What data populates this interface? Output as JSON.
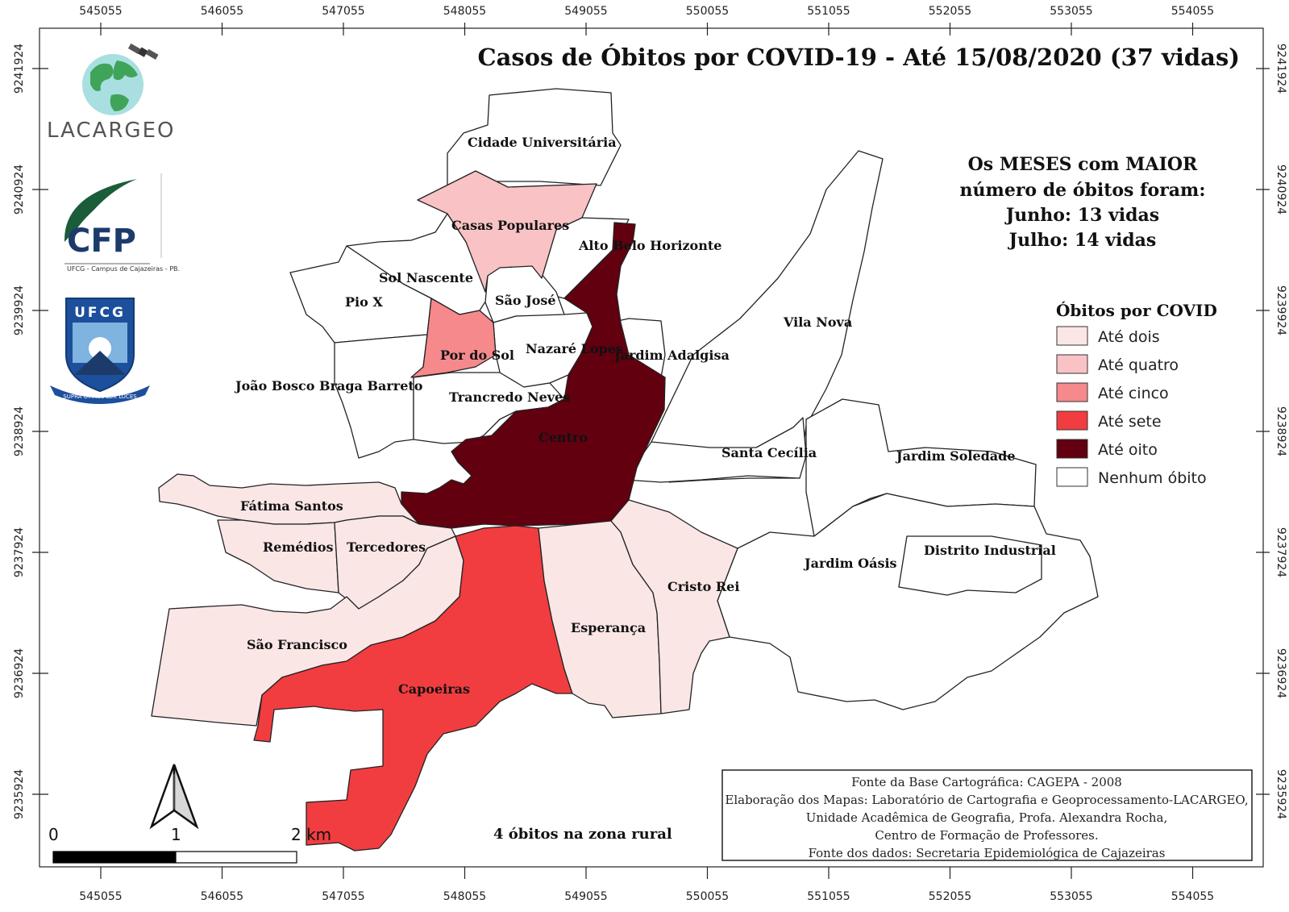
{
  "map": {
    "title": "Casos de Óbitos por COVID-19 - Até 15/08/2020 (37 vidas)",
    "x_ticks": [
      "545055",
      "546055",
      "547055",
      "548055",
      "549055",
      "550055",
      "551055",
      "552055",
      "553055",
      "554055"
    ],
    "y_ticks": [
      "9241924",
      "9240924",
      "9239924",
      "9238924",
      "9237924",
      "9236924",
      "9235924"
    ],
    "months_note": [
      "Os MESES com MAIOR",
      "número de óbitos foram:",
      "Junho: 13 vidas",
      "Julho: 14 vidas"
    ],
    "rural_note": "4 óbitos na zona rural",
    "scale": {
      "labels": [
        "0",
        "1",
        "2 km"
      ]
    },
    "legend": {
      "title": "Óbitos por COVID",
      "items": [
        {
          "label": "Até dois",
          "color": "#fbe6e6"
        },
        {
          "label": "Até quatro",
          "color": "#f9c2c4"
        },
        {
          "label": "Até cinco",
          "color": "#f5898c"
        },
        {
          "label": "Até sete",
          "color": "#f13d40"
        },
        {
          "label": "Até oito",
          "color": "#620010"
        },
        {
          "label": "Nenhum óbito",
          "color": "#ffffff"
        }
      ]
    },
    "credits": [
      "Fonte da Base Cartográfica: CAGEPA - 2008",
      "Elaboração dos Mapas: Laboratório de Cartografia e Geoprocessamento-LACARGEO,",
      "Unidade Acadêmica de Geografia, Profa. Alexandra Rocha,",
      "Centro de Formação de Professores.",
      "Fonte dos dados: Secretaria Epidemiológica de Cajazeiras"
    ],
    "logos": {
      "lacargeo": "LACARGEO",
      "cfp": "CFP",
      "cfp_sub": "UFCG - Campus de Cajazeiras - PB.",
      "ufcg": "UFCG",
      "ufcg_motto": "SUPRA OMNES LUX LUCES"
    },
    "neighborhoods": [
      {
        "name": "Cidade Universitária",
        "class": "Nenhum óbito"
      },
      {
        "name": "Casas Populares",
        "class": "Até quatro"
      },
      {
        "name": "Alto Belo Horizonte",
        "class": "Nenhum óbito"
      },
      {
        "name": "Sol Nascente",
        "class": "Nenhum óbito"
      },
      {
        "name": "Pio X",
        "class": "Nenhum óbito"
      },
      {
        "name": "São José",
        "class": "Nenhum óbito"
      },
      {
        "name": "Por do Sol",
        "class": "Até cinco"
      },
      {
        "name": "Nazaré Lopes",
        "class": "Nenhum óbito"
      },
      {
        "name": "Jardim Adalgisa",
        "class": "Nenhum óbito"
      },
      {
        "name": "Vila Nova",
        "class": "Nenhum óbito"
      },
      {
        "name": "João Bosco Braga Barreto",
        "class": "Nenhum óbito"
      },
      {
        "name": "Trancredo Neves",
        "class": "Nenhum óbito"
      },
      {
        "name": "Centro",
        "class": "Até oito"
      },
      {
        "name": "Santa Cecília",
        "class": "Nenhum óbito"
      },
      {
        "name": "Jardim Soledade",
        "class": "Nenhum óbito"
      },
      {
        "name": "Fátima Santos",
        "class": "Até dois"
      },
      {
        "name": "Remédios",
        "class": "Até dois"
      },
      {
        "name": "Tercedores",
        "class": "Até dois"
      },
      {
        "name": "Jardim Oásis",
        "class": "Nenhum óbito"
      },
      {
        "name": "Distrito Industrial",
        "class": "Nenhum óbito"
      },
      {
        "name": "Cristo Rei",
        "class": "Até dois"
      },
      {
        "name": "Esperança",
        "class": "Até dois"
      },
      {
        "name": "São Francisco",
        "class": "Até dois"
      },
      {
        "name": "Capoeiras",
        "class": "Até sete"
      }
    ]
  }
}
